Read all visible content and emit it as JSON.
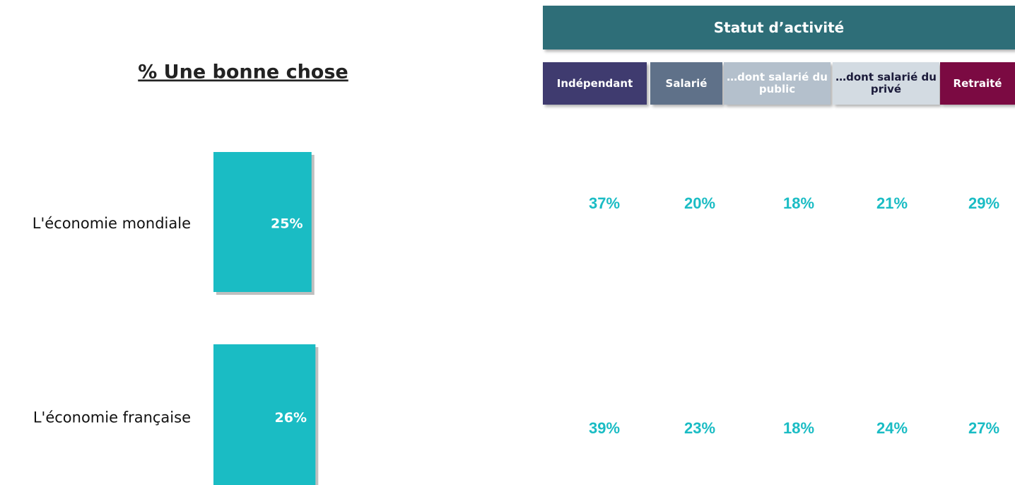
{
  "chart_data": {
    "type": "bar",
    "title": "% Une bonne chose",
    "categories": [
      "L'économie mondiale",
      "L'économie française"
    ],
    "values": [
      25,
      26
    ],
    "value_labels": [
      "25%",
      "26%"
    ],
    "color": "#1abcc4"
  },
  "table": {
    "title": "Statut d’activité",
    "columns": [
      {
        "name": "Indépendant",
        "color": "#3f3b6f"
      },
      {
        "name": "Salarié",
        "color": "#5f7189"
      },
      {
        "name": "…dont salarié du public",
        "color": "#b4c0cc"
      },
      {
        "name": "…dont salarié du privé",
        "color": "#d3dbe2"
      },
      {
        "name": "Retraité",
        "color": "#7b0a42"
      }
    ],
    "rows": [
      [
        "37%",
        "20%",
        "18%",
        "21%",
        "29%"
      ],
      [
        "39%",
        "23%",
        "18%",
        "24%",
        "27%"
      ]
    ]
  }
}
